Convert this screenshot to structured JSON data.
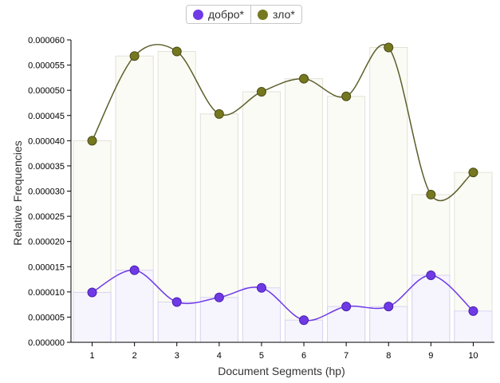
{
  "legend": {
    "items": [
      {
        "label": "добро*",
        "color": "#6f3ae6"
      },
      {
        "label": "зло*",
        "color": "#76781f"
      }
    ]
  },
  "chart_data": {
    "type": "line",
    "xlabel": "Document Segments (hp)",
    "ylabel": "Relative Frequencies",
    "categories": [
      "1",
      "2",
      "3",
      "4",
      "5",
      "6",
      "7",
      "8",
      "9",
      "10"
    ],
    "ylim": [
      0,
      6e-05
    ],
    "yticks": [
      "0.000000",
      "0.000005",
      "0.000010",
      "0.000015",
      "0.000020",
      "0.000025",
      "0.000030",
      "0.000035",
      "0.000040",
      "0.000045",
      "0.000050",
      "0.000055",
      "0.000060"
    ],
    "series": [
      {
        "name": "добро*",
        "color": "#6f3ae6",
        "values": [
          9.9e-06,
          1.43e-05,
          8e-06,
          8.9e-06,
          1.08e-05,
          4.4e-06,
          7.1e-06,
          7.1e-06,
          1.33e-05,
          6.2e-06
        ]
      },
      {
        "name": "зло*",
        "color": "#76781f",
        "values": [
          4e-05,
          5.68e-05,
          5.77e-05,
          4.53e-05,
          4.97e-05,
          5.23e-05,
          4.88e-05,
          5.85e-05,
          2.93e-05,
          3.37e-05
        ]
      }
    ]
  }
}
